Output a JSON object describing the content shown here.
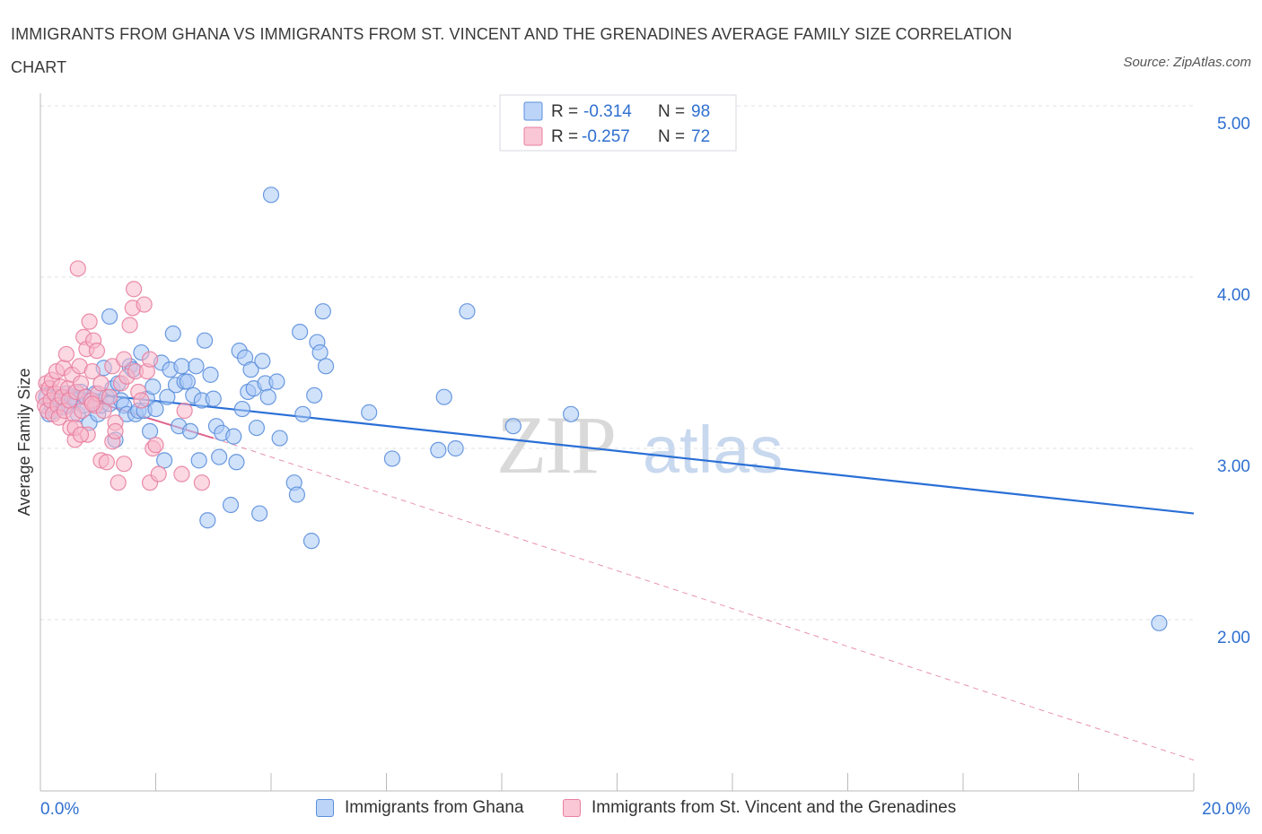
{
  "title": "IMMIGRANTS FROM GHANA VS IMMIGRANTS FROM ST. VINCENT AND THE GRENADINES AVERAGE FAMILY SIZE CORRELATION CHART",
  "source": "Source: ZipAtlas.com",
  "colors": {
    "blue_fill": "#a9c8f5",
    "blue_stroke": "#5b8fdc",
    "blue_line": "#2a6fd6",
    "pink_fill": "#f7b8cb",
    "pink_stroke": "#e87fa0",
    "pink_line": "#e0658c",
    "axis_label": "#2f6fd0",
    "grid": "#dde0e6"
  },
  "legend": [
    {
      "r_label": "R =",
      "r_value": "-0.314",
      "n_label": "N =",
      "n_value": "98"
    },
    {
      "r_label": "R =",
      "r_value": "-0.257",
      "n_label": "N =",
      "n_value": "72"
    }
  ],
  "watermark": {
    "zip": "ZIP",
    "atlas": "atlas"
  },
  "chart_data": {
    "type": "scatter",
    "title": "IMMIGRANTS FROM GHANA VS IMMIGRANTS FROM ST. VINCENT AND THE GRENADINES AVERAGE FAMILY SIZE CORRELATION CHART",
    "xlabel": "",
    "ylabel": "Average Family Size",
    "xlim": [
      0,
      20
    ],
    "ylim": [
      1.0,
      5.0
    ],
    "x_tick_labels": {
      "left": "0.0%",
      "right": "20.0%"
    },
    "y_ticks": [
      {
        "value": 5.0,
        "label": "5.00"
      },
      {
        "value": 4.0,
        "label": "4.00"
      },
      {
        "value": 3.0,
        "label": "3.00"
      },
      {
        "value": 2.0,
        "label": "2.00"
      }
    ],
    "grid": true,
    "legend_position": "top-center",
    "series": [
      {
        "name": "Immigrants from Ghana",
        "color": "blue",
        "trend": {
          "x": [
            0,
            20
          ],
          "y": [
            3.35,
            2.62
          ],
          "style": "solid"
        },
        "points": [
          [
            0.1,
            3.3
          ],
          [
            0.15,
            3.2
          ],
          [
            0.2,
            3.25
          ],
          [
            0.25,
            3.22
          ],
          [
            0.3,
            3.3
          ],
          [
            0.35,
            3.28
          ],
          [
            0.4,
            3.24
          ],
          [
            0.45,
            3.32
          ],
          [
            0.5,
            3.25
          ],
          [
            0.55,
            3.3
          ],
          [
            0.6,
            3.28
          ],
          [
            0.65,
            3.2
          ],
          [
            0.7,
            3.33
          ],
          [
            0.75,
            3.25
          ],
          [
            0.8,
            3.3
          ],
          [
            0.85,
            3.15
          ],
          [
            0.9,
            3.28
          ],
          [
            0.95,
            3.32
          ],
          [
            1.0,
            3.2
          ],
          [
            1.05,
            3.25
          ],
          [
            1.1,
            3.47
          ],
          [
            1.15,
            3.3
          ],
          [
            1.2,
            3.26
          ],
          [
            1.25,
            3.35
          ],
          [
            1.3,
            3.05
          ],
          [
            1.35,
            3.38
          ],
          [
            1.4,
            3.28
          ],
          [
            1.45,
            3.25
          ],
          [
            1.5,
            3.2
          ],
          [
            1.55,
            3.48
          ],
          [
            1.6,
            3.46
          ],
          [
            1.65,
            3.2
          ],
          [
            1.7,
            3.22
          ],
          [
            1.75,
            3.56
          ],
          [
            1.8,
            3.22
          ],
          [
            1.85,
            3.29
          ],
          [
            1.9,
            3.1
          ],
          [
            1.95,
            3.36
          ],
          [
            2.0,
            3.23
          ],
          [
            2.1,
            3.5
          ],
          [
            2.15,
            2.93
          ],
          [
            2.2,
            3.3
          ],
          [
            2.25,
            3.46
          ],
          [
            2.3,
            3.67
          ],
          [
            2.35,
            3.37
          ],
          [
            2.4,
            3.13
          ],
          [
            2.45,
            3.48
          ],
          [
            2.5,
            3.39
          ],
          [
            2.55,
            3.39
          ],
          [
            2.6,
            3.1
          ],
          [
            2.65,
            3.31
          ],
          [
            2.7,
            3.48
          ],
          [
            2.75,
            2.93
          ],
          [
            2.8,
            3.28
          ],
          [
            2.85,
            3.63
          ],
          [
            2.9,
            2.58
          ],
          [
            2.95,
            3.43
          ],
          [
            3.0,
            3.29
          ],
          [
            3.05,
            3.13
          ],
          [
            3.1,
            2.95
          ],
          [
            3.15,
            3.09
          ],
          [
            3.3,
            2.67
          ],
          [
            3.35,
            3.07
          ],
          [
            3.4,
            2.92
          ],
          [
            3.45,
            3.57
          ],
          [
            3.5,
            3.23
          ],
          [
            3.55,
            3.53
          ],
          [
            3.6,
            3.33
          ],
          [
            3.65,
            3.46
          ],
          [
            3.7,
            3.35
          ],
          [
            3.75,
            3.12
          ],
          [
            3.8,
            2.62
          ],
          [
            3.85,
            3.51
          ],
          [
            3.9,
            3.38
          ],
          [
            3.95,
            3.3
          ],
          [
            4.0,
            4.48
          ],
          [
            4.1,
            3.39
          ],
          [
            4.15,
            3.06
          ],
          [
            4.4,
            2.8
          ],
          [
            4.45,
            2.73
          ],
          [
            4.5,
            3.68
          ],
          [
            4.55,
            3.2
          ],
          [
            4.7,
            2.46
          ],
          [
            4.75,
            3.31
          ],
          [
            4.8,
            3.62
          ],
          [
            4.85,
            3.56
          ],
          [
            4.9,
            3.8
          ],
          [
            4.95,
            3.48
          ],
          [
            5.7,
            3.21
          ],
          [
            6.1,
            2.94
          ],
          [
            6.9,
            2.99
          ],
          [
            7.0,
            3.3
          ],
          [
            7.2,
            3.0
          ],
          [
            7.4,
            3.8
          ],
          [
            8.2,
            3.13
          ],
          [
            9.2,
            3.2
          ],
          [
            19.4,
            1.98
          ],
          [
            1.2,
            3.77
          ]
        ]
      },
      {
        "name": "Immigrants from St. Vincent and the Grenadines",
        "color": "pink",
        "trend": {
          "x": [
            0,
            3.0
          ],
          "y": [
            3.37,
            3.06
          ],
          "style": "solid"
        },
        "trend_ext": {
          "x": [
            3.0,
            20
          ],
          "y": [
            3.06,
            1.18
          ],
          "style": "dashed"
        },
        "points": [
          [
            0.05,
            3.3
          ],
          [
            0.08,
            3.25
          ],
          [
            0.1,
            3.38
          ],
          [
            0.12,
            3.22
          ],
          [
            0.15,
            3.35
          ],
          [
            0.18,
            3.28
          ],
          [
            0.2,
            3.4
          ],
          [
            0.22,
            3.2
          ],
          [
            0.25,
            3.32
          ],
          [
            0.28,
            3.45
          ],
          [
            0.3,
            3.25
          ],
          [
            0.32,
            3.18
          ],
          [
            0.35,
            3.36
          ],
          [
            0.38,
            3.3
          ],
          [
            0.4,
            3.47
          ],
          [
            0.42,
            3.22
          ],
          [
            0.45,
            3.55
          ],
          [
            0.48,
            3.35
          ],
          [
            0.5,
            3.28
          ],
          [
            0.52,
            3.12
          ],
          [
            0.55,
            3.43
          ],
          [
            0.58,
            3.2
          ],
          [
            0.6,
            3.05
          ],
          [
            0.62,
            3.33
          ],
          [
            0.65,
            4.05
          ],
          [
            0.68,
            3.48
          ],
          [
            0.7,
            3.38
          ],
          [
            0.72,
            3.22
          ],
          [
            0.75,
            3.65
          ],
          [
            0.78,
            3.3
          ],
          [
            0.8,
            3.58
          ],
          [
            0.82,
            3.08
          ],
          [
            0.85,
            3.74
          ],
          [
            0.88,
            3.28
          ],
          [
            0.9,
            3.45
          ],
          [
            0.92,
            3.63
          ],
          [
            0.95,
            3.25
          ],
          [
            0.98,
            3.57
          ],
          [
            1.0,
            3.32
          ],
          [
            1.05,
            2.93
          ],
          [
            1.1,
            3.22
          ],
          [
            1.15,
            2.92
          ],
          [
            1.2,
            3.3
          ],
          [
            1.25,
            3.48
          ],
          [
            1.3,
            3.15
          ],
          [
            1.35,
            2.8
          ],
          [
            1.4,
            3.38
          ],
          [
            1.45,
            3.52
          ],
          [
            1.5,
            3.42
          ],
          [
            1.55,
            3.72
          ],
          [
            1.6,
            3.82
          ],
          [
            1.62,
            3.93
          ],
          [
            1.65,
            3.45
          ],
          [
            1.7,
            3.33
          ],
          [
            1.75,
            3.28
          ],
          [
            1.8,
            3.84
          ],
          [
            1.85,
            3.45
          ],
          [
            1.9,
            2.8
          ],
          [
            1.95,
            3.0
          ],
          [
            2.0,
            3.02
          ],
          [
            2.05,
            2.85
          ],
          [
            1.45,
            2.91
          ],
          [
            1.25,
            3.04
          ],
          [
            0.6,
            3.12
          ],
          [
            0.7,
            3.08
          ],
          [
            2.5,
            3.22
          ],
          [
            2.45,
            2.85
          ],
          [
            2.8,
            2.8
          ],
          [
            1.9,
            3.52
          ],
          [
            1.3,
            3.1
          ],
          [
            0.9,
            3.26
          ],
          [
            1.05,
            3.38
          ]
        ]
      }
    ]
  }
}
